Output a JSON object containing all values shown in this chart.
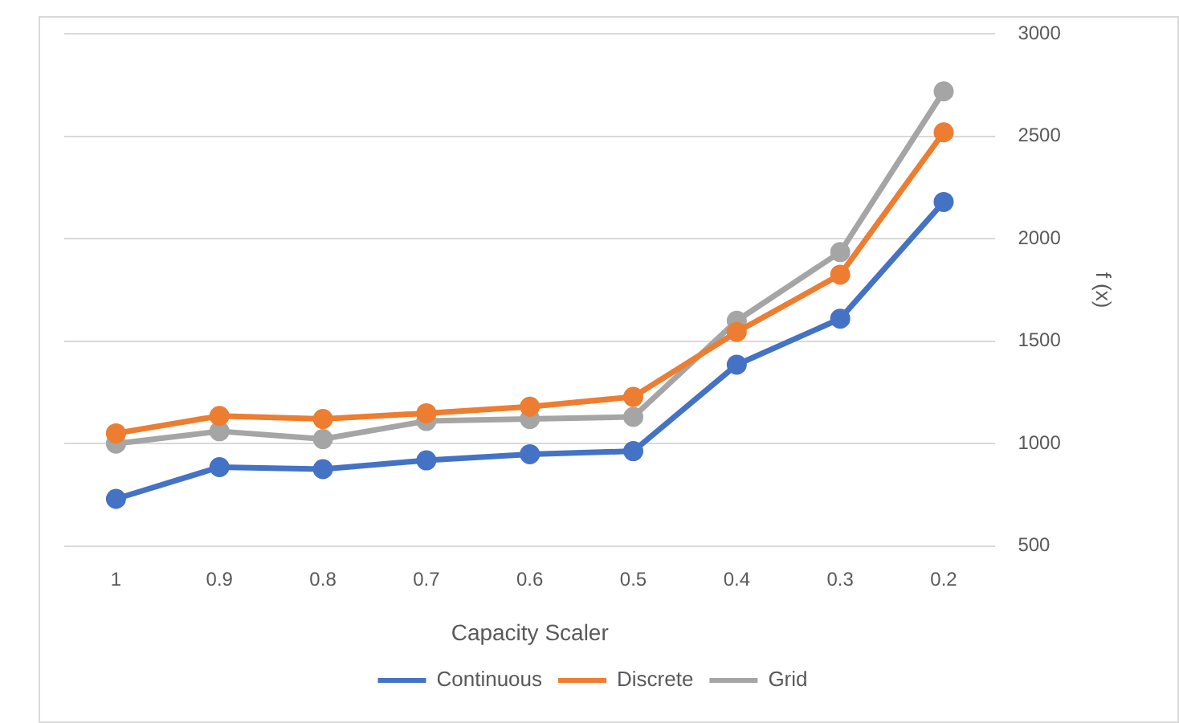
{
  "chart_data": {
    "type": "line",
    "xlabel": "Capacity Scaler",
    "ylabel": "f (x)",
    "categories": [
      "1",
      "0.9",
      "0.8",
      "0.7",
      "0.6",
      "0.5",
      "0.4",
      "0.3",
      "0.2"
    ],
    "series": [
      {
        "name": "Continuous",
        "color": "#4472c4",
        "values": [
          730,
          885,
          875,
          918,
          948,
          963,
          1385,
          1610,
          2180
        ]
      },
      {
        "name": "Discrete",
        "color": "#ed7d31",
        "values": [
          1050,
          1135,
          1120,
          1148,
          1180,
          1228,
          1545,
          1825,
          2520
        ]
      },
      {
        "name": "Grid",
        "color": "#a5a5a5",
        "values": [
          1000,
          1060,
          1022,
          1110,
          1120,
          1130,
          1600,
          1935,
          2720
        ]
      }
    ],
    "ylim": [
      500,
      3000
    ],
    "yticks": [
      500,
      1000,
      1500,
      2000,
      2500,
      3000
    ],
    "grid": "y",
    "legend": "bottom",
    "marker": "circle",
    "line_style": "solid"
  }
}
